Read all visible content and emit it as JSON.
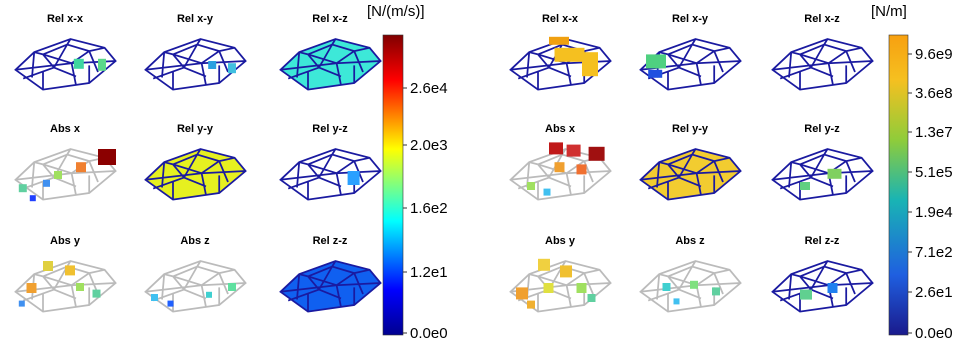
{
  "left": {
    "panels": [
      "Rel x-x",
      "Rel x-y",
      "Rel x-z",
      "Abs x",
      "Rel y-y",
      "Rel y-z",
      "Abs y",
      "Abs z",
      "Rel z-z"
    ],
    "colorbar": {
      "unit": "[N/(m/s)]",
      "ticks": [
        "0.0e0",
        "1.2e1",
        "1.6e2",
        "2.0e3",
        "2.6e4"
      ]
    }
  },
  "right": {
    "panels": [
      "Rel x-x",
      "Rel x-y",
      "Rel x-z",
      "Abs x",
      "Rel y-y",
      "Rel y-z",
      "Abs y",
      "Abs z",
      "Rel z-z"
    ],
    "colorbar": {
      "unit": "[N/m]",
      "ticks": [
        "0.0e0",
        "2.6e1",
        "7.1e2",
        "1.9e4",
        "5.1e5",
        "1.3e7",
        "3.6e8",
        "9.6e9"
      ]
    }
  }
}
